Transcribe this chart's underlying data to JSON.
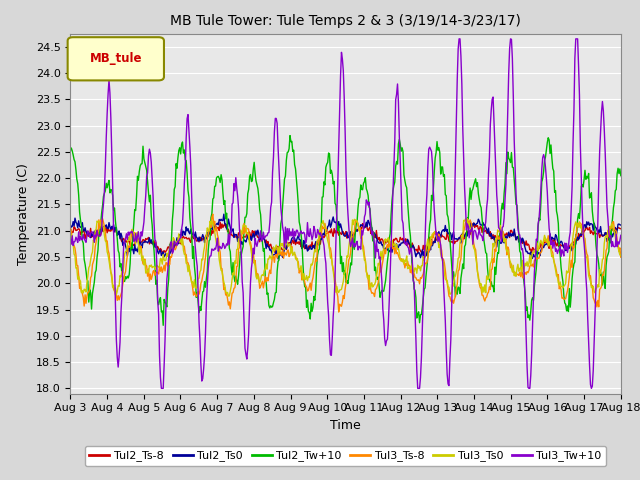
{
  "title": "MB Tule Tower: Tule Temps 2 & 3 (3/19/14-3/23/17)",
  "xlabel": "Time",
  "ylabel": "Temperature (C)",
  "ylim": [
    17.9,
    24.75
  ],
  "yticks": [
    18.0,
    18.5,
    19.0,
    19.5,
    20.0,
    20.5,
    21.0,
    21.5,
    22.0,
    22.5,
    23.0,
    23.5,
    24.0,
    24.5
  ],
  "x_labels": [
    "Aug 3",
    "Aug 4",
    "Aug 5",
    "Aug 6",
    "Aug 7",
    "Aug 8",
    "Aug 9",
    "Aug 10",
    "Aug 11",
    "Aug 12",
    "Aug 13",
    "Aug 14",
    "Aug 15",
    "Aug 16",
    "Aug 17",
    "Aug 18"
  ],
  "legend_label": "MB_tule",
  "series": [
    {
      "name": "Tul2_Ts-8",
      "color": "#cc0000"
    },
    {
      "name": "Tul2_Ts0",
      "color": "#000099"
    },
    {
      "name": "Tul2_Tw+10",
      "color": "#00bb00"
    },
    {
      "name": "Tul3_Ts-8",
      "color": "#ff8800"
    },
    {
      "name": "Tul3_Ts0",
      "color": "#cccc00"
    },
    {
      "name": "Tul3_Tw+10",
      "color": "#8800cc"
    }
  ],
  "background_color": "#d8d8d8",
  "plot_bg_color": "#e8e8e8",
  "grid_color": "#ffffff"
}
